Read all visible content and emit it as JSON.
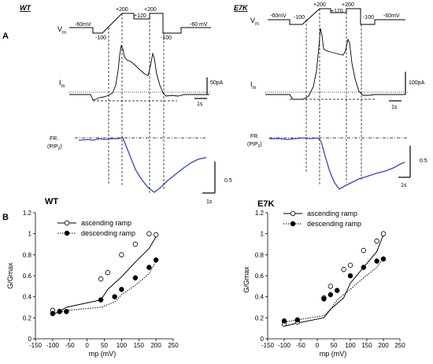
{
  "panel_labels": {
    "a": "A",
    "b": "B"
  },
  "traces": {
    "wt": {
      "condition": "WT",
      "vm_label": "V",
      "vm_sub": "m",
      "im_label": "I",
      "im_sub": "m",
      "fr_label_1": "FR.",
      "fr_label_2": "(PIP",
      "fr_label_2_sub": "2",
      "fr_label_2_end": ")",
      "voltage_labels": [
        "-60mV",
        "-100",
        "+200",
        "+120",
        "+200",
        "-100",
        "-60 mV"
      ],
      "current_scale": "50pA",
      "time_scale_1": "1s",
      "fr_scale": "0.5",
      "time_scale_2": "1s"
    },
    "e7k": {
      "condition": "E7K",
      "vm_label": "V",
      "vm_sub": "m",
      "im_label": "I",
      "im_sub": "m",
      "fr_label_1": "FR.",
      "fr_label_2": "(PIP",
      "fr_label_2_sub": "2",
      "fr_label_2_end": ")",
      "voltage_labels": [
        "-60mV",
        "-100",
        "+200",
        "+120",
        "+200",
        "-100",
        "-60mV"
      ],
      "current_scale": "100pA",
      "time_scale_1": "1s",
      "fr_scale": "0.5",
      "time_scale_2": "1s"
    }
  },
  "chart_data": [
    {
      "type": "scatter",
      "title": "WT",
      "xlabel": "mp (mV)",
      "ylabel": "G/Gmax",
      "xlim": [
        -150,
        250
      ],
      "ylim": [
        0,
        1.2
      ],
      "xticks": [
        "-150",
        "-100",
        "-50",
        "0",
        "50",
        "100",
        "150",
        "200",
        "250"
      ],
      "yticks": [
        "0",
        "0.2",
        "0.4",
        "0.6",
        "0.8",
        "1",
        "1.2"
      ],
      "legend_position": "top-left",
      "series": [
        {
          "name": "ascending ramp",
          "marker": "open-circle",
          "line": "solid",
          "x": [
            -100,
            -80,
            -60,
            40,
            60,
            100,
            140,
            180,
            200
          ],
          "y": [
            0.27,
            0.26,
            0.26,
            0.57,
            0.63,
            0.8,
            0.9,
            1.0,
            0.99
          ],
          "fit_y": [
            0.23,
            0.26,
            0.3,
            0.37,
            0.47,
            0.59,
            0.73,
            0.86,
            0.97
          ]
        },
        {
          "name": "descending ramp",
          "marker": "filled-circle",
          "line": "dotted",
          "x": [
            -100,
            -80,
            -60,
            40,
            80,
            100,
            140,
            180,
            200
          ],
          "y": [
            0.24,
            0.26,
            0.26,
            0.37,
            0.4,
            0.47,
            0.58,
            0.68,
            0.75
          ],
          "fit_y": [
            0.24,
            0.25,
            0.27,
            0.3,
            0.35,
            0.42,
            0.51,
            0.62,
            0.74
          ]
        }
      ]
    },
    {
      "type": "scatter",
      "title": "E7K",
      "xlabel": "mp (mV)",
      "ylabel": "G/Gmax",
      "xlim": [
        -150,
        250
      ],
      "ylim": [
        0,
        1.2
      ],
      "xticks": [
        "-150",
        "-100",
        "-50",
        "0",
        "50",
        "100",
        "150",
        "200",
        "250"
      ],
      "yticks": [
        "0",
        "0.2",
        "0.4",
        "0.6",
        "0.8",
        "1",
        "1.2"
      ],
      "legend_position": "top-left",
      "series": [
        {
          "name": "ascending ramp",
          "marker": "open-circle",
          "line": "solid",
          "x": [
            -100,
            -60,
            20,
            40,
            80,
            100,
            140,
            180,
            200
          ],
          "y": [
            0.14,
            0.16,
            0.39,
            0.5,
            0.66,
            0.7,
            0.84,
            0.93,
            1.0
          ],
          "fit_y": [
            0.12,
            0.15,
            0.2,
            0.28,
            0.39,
            0.53,
            0.68,
            0.83,
            0.99
          ]
        },
        {
          "name": "descending ramp",
          "marker": "filled-circle",
          "line": "dotted",
          "x": [
            -100,
            -60,
            20,
            40,
            60,
            100,
            140,
            180,
            200
          ],
          "y": [
            0.17,
            0.18,
            0.38,
            0.42,
            0.46,
            0.6,
            0.68,
            0.74,
            0.76
          ],
          "fit_y": [
            0.16,
            0.18,
            0.22,
            0.28,
            0.37,
            0.47,
            0.58,
            0.68,
            0.77
          ]
        }
      ]
    }
  ]
}
